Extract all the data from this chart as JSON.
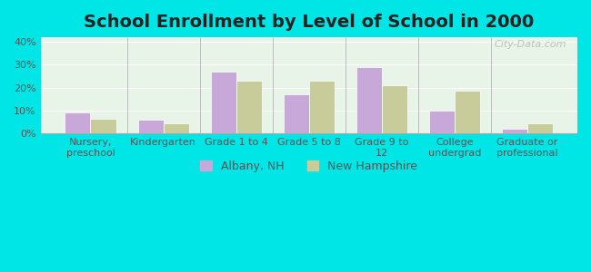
{
  "title": "School Enrollment by Level of School in 2000",
  "categories": [
    "Nursery,\npreschool",
    "Kindergarten",
    "Grade 1 to 4",
    "Grade 5 to 8",
    "Grade 9 to\n12",
    "College\nundergrad",
    "Graduate or\nprofessional"
  ],
  "albany_values": [
    9.0,
    6.0,
    27.0,
    17.0,
    29.0,
    10.0,
    2.0
  ],
  "nh_values": [
    6.5,
    4.5,
    23.0,
    23.0,
    21.0,
    18.5,
    4.5
  ],
  "albany_color": "#c8a8d8",
  "nh_color": "#c8cc9a",
  "background_color": "#00e5e5",
  "plot_bg_top": "#e8f5e8",
  "plot_bg_bottom": "#f0f8f0",
  "ylim": [
    0,
    42
  ],
  "yticks": [
    0,
    10,
    20,
    30,
    40
  ],
  "ytick_labels": [
    "0%",
    "10%",
    "20%",
    "30%",
    "40%"
  ],
  "legend_albany": "Albany, NH",
  "legend_nh": "New Hampshire",
  "title_fontsize": 14,
  "axis_fontsize": 8,
  "legend_fontsize": 9
}
